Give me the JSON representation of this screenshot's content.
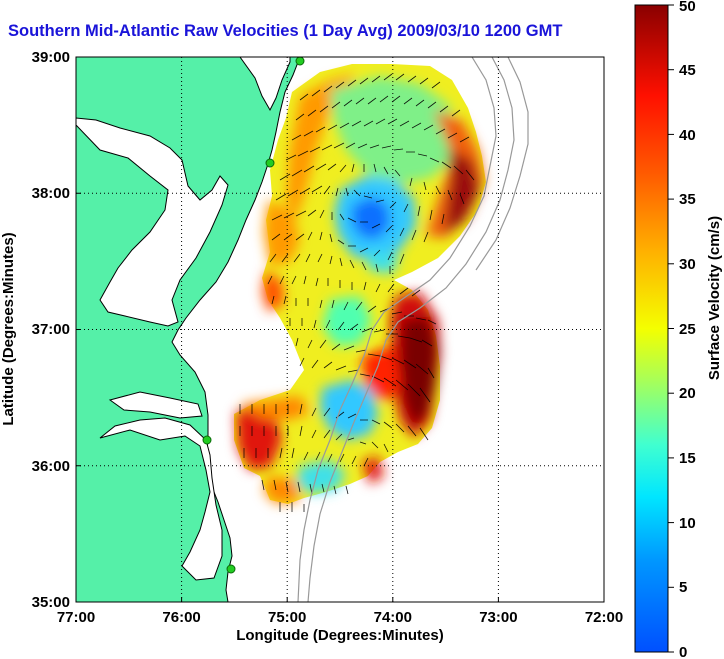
{
  "title": "Southern Mid-Atlantic Raw Velocities (1 Day Avg) 2009/03/10 1200 GMT",
  "x_axis": {
    "label": "Longitude (Degrees:Minutes)",
    "ticks": [
      "77:00",
      "76:00",
      "75:00",
      "74:00",
      "73:00",
      "72:00"
    ]
  },
  "y_axis": {
    "label": "Latitude (Degrees:Minutes)",
    "ticks": [
      "39:00",
      "38:00",
      "37:00",
      "36:00",
      "35:00"
    ]
  },
  "colorbar": {
    "label": "Surface Velocity (cm/s)",
    "ticks": [
      "0",
      "5",
      "10",
      "15",
      "20",
      "25",
      "30",
      "35",
      "40",
      "45",
      "50"
    ],
    "min": 0,
    "max": 50
  },
  "colors": {
    "land": "#55f0a8",
    "title": "#1a14d9",
    "station": "#22cc22",
    "bathymetry": "#999999"
  }
}
